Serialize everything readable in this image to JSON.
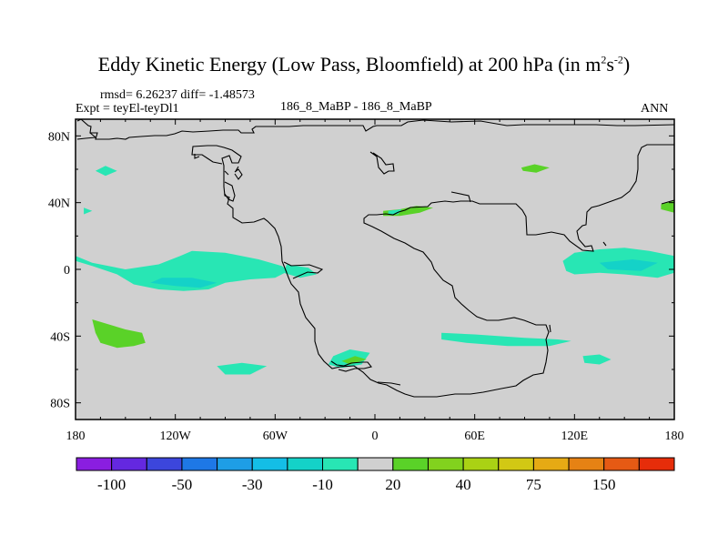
{
  "header": {
    "title_main": "Eddy Kinetic Energy (Low Pass, Bloomfield) at 200 hPa (in m",
    "title_sup1": "2",
    "title_mid": "s",
    "title_sup2": "-2",
    "title_end": ")",
    "stats": "rmsd= 6.26237  diff= -1.48573",
    "expt": "Expt = teyEl-teyDl1",
    "comparison": "186_8_MaBP - 186_8_MaBP",
    "season": "ANN"
  },
  "chart_data": {
    "type": "heatmap",
    "title": "Eddy Kinetic Energy (Low Pass, Bloomfield) at 200 hPa (in m2s-2)",
    "projection": "cylindrical-equidistant",
    "xlim": [
      -180,
      180
    ],
    "ylim": [
      -90,
      90
    ],
    "x_ticks": [
      {
        "value": -180,
        "label": "180"
      },
      {
        "value": -120,
        "label": "120W"
      },
      {
        "value": -60,
        "label": "60W"
      },
      {
        "value": 0,
        "label": "0"
      },
      {
        "value": 60,
        "label": "60E"
      },
      {
        "value": 120,
        "label": "120E"
      },
      {
        "value": 180,
        "label": "180"
      }
    ],
    "y_ticks": [
      {
        "value": 80,
        "label": "80N"
      },
      {
        "value": 40,
        "label": "40N"
      },
      {
        "value": 0,
        "label": "0"
      },
      {
        "value": -40,
        "label": "40S"
      },
      {
        "value": -80,
        "label": "80S"
      }
    ],
    "background_color": "#d0d0d0",
    "colorbar": {
      "colors": [
        "#8a1ee0",
        "#6428e0",
        "#3c46dc",
        "#1e78e6",
        "#1e9ee6",
        "#14bee6",
        "#14d2c8",
        "#28e6b4",
        "#d0d0d0",
        "#5ad228",
        "#82d21e",
        "#aad214",
        "#d2c814",
        "#e6aa14",
        "#e68214",
        "#e65a14",
        "#e62d0a"
      ],
      "labels": [
        {
          "after_box": 1,
          "text": "-100"
        },
        {
          "after_box": 3,
          "text": "-50"
        },
        {
          "after_box": 5,
          "text": "-30"
        },
        {
          "after_box": 7,
          "text": "-10"
        },
        {
          "after_box": 9,
          "text": "20"
        },
        {
          "after_box": 11,
          "text": "40"
        },
        {
          "after_box": 13,
          "text": "75"
        },
        {
          "after_box": 15,
          "text": "150"
        }
      ]
    },
    "anomalies": [
      {
        "name": "central-pacific-negative",
        "level": -10,
        "color": "#28e6b4",
        "points": [
          [
            -180,
            5
          ],
          [
            -170,
            2
          ],
          [
            -155,
            -3
          ],
          [
            -145,
            -9
          ],
          [
            -130,
            -12
          ],
          [
            -115,
            -13
          ],
          [
            -100,
            -12
          ],
          [
            -90,
            -8
          ],
          [
            -75,
            -6
          ],
          [
            -60,
            -5
          ],
          [
            -52,
            -1
          ],
          [
            -56,
            2
          ],
          [
            -70,
            6
          ],
          [
            -90,
            10
          ],
          [
            -110,
            11
          ],
          [
            -117,
            8
          ],
          [
            -130,
            3
          ],
          [
            -150,
            0
          ],
          [
            -170,
            4
          ],
          [
            -180,
            8
          ]
        ]
      },
      {
        "name": "central-pacific-core",
        "level": -20,
        "color": "#14d2c8",
        "points": [
          [
            -135,
            -8
          ],
          [
            -120,
            -10
          ],
          [
            -105,
            -11
          ],
          [
            -95,
            -8
          ],
          [
            -110,
            -5
          ],
          [
            -128,
            -5
          ]
        ]
      },
      {
        "name": "east-pacific-tip",
        "level": -10,
        "color": "#28e6b4",
        "points": [
          [
            -53,
            3
          ],
          [
            -40,
            1
          ],
          [
            -35,
            -3
          ],
          [
            -45,
            -5
          ],
          [
            -55,
            -2
          ]
        ]
      },
      {
        "name": "west-pacific-negative",
        "level": -10,
        "color": "#28e6b4",
        "points": [
          [
            120,
            10
          ],
          [
            135,
            12
          ],
          [
            150,
            13
          ],
          [
            165,
            11
          ],
          [
            180,
            8
          ],
          [
            180,
            -2
          ],
          [
            170,
            -5
          ],
          [
            150,
            -3
          ],
          [
            135,
            -2
          ],
          [
            120,
            -3
          ],
          [
            115,
            -1
          ],
          [
            113,
            5
          ]
        ]
      },
      {
        "name": "west-pacific-core",
        "level": -20,
        "color": "#14d2c8",
        "points": [
          [
            135,
            4
          ],
          [
            155,
            6
          ],
          [
            170,
            4
          ],
          [
            160,
            -1
          ],
          [
            140,
            0
          ]
        ]
      },
      {
        "name": "indian-ocean-negative",
        "level": -10,
        "color": "#28e6b4",
        "points": [
          [
            40,
            -38
          ],
          [
            60,
            -39
          ],
          [
            90,
            -41
          ],
          [
            110,
            -42
          ],
          [
            118,
            -43
          ],
          [
            105,
            -46
          ],
          [
            80,
            -46
          ],
          [
            55,
            -44
          ],
          [
            40,
            -42
          ]
        ]
      },
      {
        "name": "south-pacific-negative",
        "level": -10,
        "color": "#28e6b4",
        "points": [
          [
            -95,
            -58
          ],
          [
            -80,
            -56
          ],
          [
            -65,
            -58
          ],
          [
            -75,
            -63
          ],
          [
            -90,
            -63
          ]
        ]
      },
      {
        "name": "tasman-negative",
        "level": -10,
        "color": "#28e6b4",
        "points": [
          [
            125,
            -52
          ],
          [
            135,
            -51
          ],
          [
            142,
            -54
          ],
          [
            135,
            -57
          ],
          [
            126,
            -56
          ]
        ]
      },
      {
        "name": "south-atlantic-negative",
        "level": -10,
        "color": "#28e6b4",
        "points": [
          [
            -25,
            -52
          ],
          [
            -15,
            -48
          ],
          [
            -3,
            -50
          ],
          [
            -8,
            -57
          ],
          [
            -20,
            -59
          ],
          [
            -28,
            -57
          ]
        ]
      },
      {
        "name": "south-atlantic-positive",
        "level": 20,
        "color": "#5ad228",
        "points": [
          [
            -20,
            -55
          ],
          [
            -12,
            -52
          ],
          [
            -5,
            -54
          ],
          [
            -15,
            -57
          ]
        ]
      },
      {
        "name": "north-pacific-negative",
        "level": -10,
        "color": "#28e6b4",
        "points": [
          [
            -168,
            59
          ],
          [
            -162,
            62
          ],
          [
            -155,
            59
          ],
          [
            -162,
            56
          ]
        ]
      },
      {
        "name": "west-atlantic-tiny",
        "level": -10,
        "color": "#28e6b4",
        "points": [
          [
            -175,
            37
          ],
          [
            -170,
            35
          ],
          [
            -175,
            33
          ]
        ]
      },
      {
        "name": "south-pacific-positive",
        "level": 20,
        "color": "#5ad228",
        "points": [
          [
            -170,
            -30
          ],
          [
            -160,
            -33
          ],
          [
            -150,
            -36
          ],
          [
            -140,
            -38
          ],
          [
            -138,
            -44
          ],
          [
            -145,
            -46
          ],
          [
            -155,
            -47
          ],
          [
            -165,
            -44
          ],
          [
            -168,
            -38
          ]
        ]
      },
      {
        "name": "mediterranean-positive",
        "level": 20,
        "color": "#5ad228",
        "points": [
          [
            5,
            35
          ],
          [
            15,
            36
          ],
          [
            25,
            38
          ],
          [
            35,
            37
          ],
          [
            27,
            34
          ],
          [
            15,
            32
          ],
          [
            5,
            32
          ]
        ]
      },
      {
        "name": "mediterranean-core",
        "level": -10,
        "color": "#28e6b4",
        "points": [
          [
            8,
            35
          ],
          [
            16,
            36
          ],
          [
            14,
            33
          ],
          [
            8,
            33
          ]
        ]
      },
      {
        "name": "central-asia-positive",
        "level": 20,
        "color": "#5ad228",
        "points": [
          [
            88,
            61
          ],
          [
            96,
            63
          ],
          [
            105,
            61
          ],
          [
            97,
            58
          ],
          [
            89,
            59
          ]
        ]
      },
      {
        "name": "north-pacific-east-positive",
        "level": 20,
        "color": "#5ad228",
        "points": [
          [
            172,
            39
          ],
          [
            180,
            41
          ],
          [
            180,
            34
          ],
          [
            172,
            36
          ]
        ]
      }
    ]
  }
}
